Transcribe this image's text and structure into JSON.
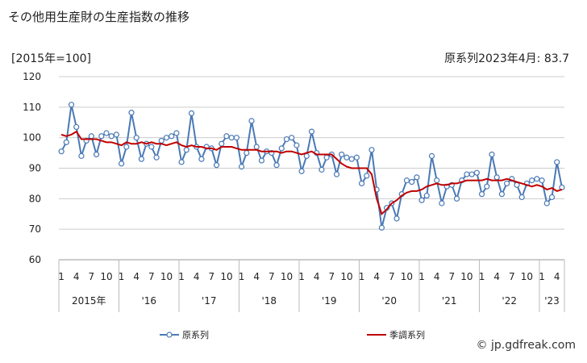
{
  "title": "その他用生産財の生産指数の推移",
  "unit_label": "[2015年=100]",
  "latest_label": "原系列2023年4月: 83.7",
  "watermark": "© jp.gdfreak.com",
  "colors": {
    "original": "#4a79b5",
    "seasonal": "#c00000",
    "grid": "#cccccc"
  },
  "chart_data": {
    "type": "line",
    "title": "その他用生産財の生産指数の推移",
    "ylabel": "[2015年=100]",
    "ylim": [
      60,
      120
    ],
    "yticks": [
      60,
      70,
      80,
      90,
      100,
      110,
      120
    ],
    "grid": true,
    "legend_position": "bottom",
    "month_ticks": [
      "1",
      "4",
      "7",
      "10"
    ],
    "year_labels": [
      "2015年",
      "'16",
      "'17",
      "'18",
      "'19",
      "'20",
      "'21",
      "'22",
      "'23"
    ],
    "x_start": "2015-01",
    "x_end": "2023-04",
    "series": [
      {
        "name": "原系列",
        "marker": "circle",
        "values": [
          95.5,
          98.5,
          110.8,
          103.5,
          94,
          99,
          100.5,
          94.5,
          100.5,
          101.5,
          100.5,
          101,
          91.5,
          97,
          108.2,
          100,
          93,
          98,
          97,
          93.5,
          99,
          100,
          100.5,
          101.5,
          92,
          96,
          108,
          97,
          93,
          97,
          96.5,
          91,
          98,
          100.5,
          100,
          100,
          90.5,
          95,
          105.5,
          97,
          92.5,
          95.5,
          95,
          91,
          96.5,
          99.5,
          100,
          97.5,
          89,
          94,
          102,
          95,
          89.5,
          93.5,
          94.5,
          88,
          94.5,
          93.5,
          93,
          93.5,
          85,
          87.5,
          96,
          83,
          70.5,
          77,
          78.5,
          73.5,
          81.5,
          86,
          85.5,
          87,
          79.5,
          81,
          94,
          86,
          78.5,
          84,
          84.5,
          80,
          86,
          88,
          88,
          88.5,
          81.5,
          84,
          94.5,
          87,
          81.5,
          85,
          86.5,
          84.5,
          80.5,
          85,
          86,
          86.5,
          86,
          78.5,
          80.5,
          92,
          83.7
        ]
      },
      {
        "name": "季調系列",
        "marker": "none",
        "values": [
          101,
          100.5,
          101,
          102,
          99.5,
          99.5,
          99.5,
          99.5,
          99,
          98.5,
          98.5,
          98,
          97.5,
          98.5,
          98,
          98,
          98.5,
          98,
          98.5,
          98,
          98,
          97.5,
          98,
          98.5,
          97.5,
          97,
          97.5,
          97,
          97,
          96.5,
          96.5,
          96,
          97,
          97,
          97,
          96.5,
          96,
          96,
          96,
          96,
          95.5,
          95.5,
          95.5,
          95.5,
          95,
          95.5,
          95.5,
          95,
          94.5,
          95,
          95.5,
          94.5,
          94.5,
          94.5,
          94.5,
          93,
          91.5,
          90.5,
          90,
          90,
          90,
          90,
          88,
          80,
          75,
          76.5,
          78.5,
          79.5,
          81,
          82,
          82.5,
          82.5,
          83,
          84,
          84.5,
          85,
          84.5,
          84.5,
          85,
          85,
          85.5,
          86,
          86,
          86,
          86,
          86.5,
          86,
          86,
          86,
          86.5,
          86,
          85.5,
          85,
          84.5,
          84,
          84.5,
          84,
          83,
          83.5,
          82.5,
          83
        ]
      }
    ]
  }
}
